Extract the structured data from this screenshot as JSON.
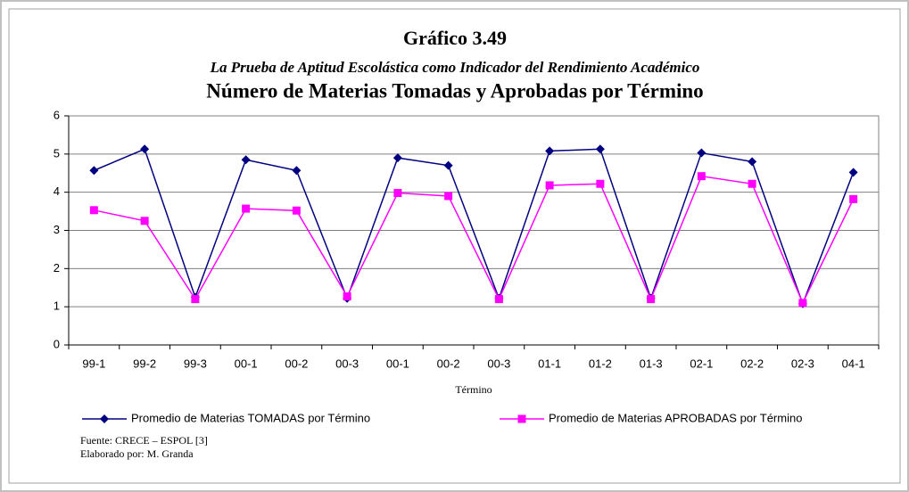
{
  "chart_data": {
    "type": "line",
    "title": "Gráfico 3.49",
    "subtitle": "La Prueba de Aptitud Escolástica como Indicador del Rendimiento Académico",
    "heading": "Número de Materias Tomadas y Aprobadas por Término",
    "x_label": "Término",
    "categories": [
      "99-1",
      "99-2",
      "99-3",
      "00-1",
      "00-2",
      "00-3",
      "00-1",
      "00-2",
      "00-3",
      "01-1",
      "01-2",
      "01-3",
      "02-1",
      "02-2",
      "02-3",
      "04-1"
    ],
    "series": [
      {
        "name": "Promedio de Materias TOMADAS por Término",
        "color": "#000080",
        "marker": "diamond",
        "values": [
          4.57,
          5.13,
          1.25,
          4.85,
          4.57,
          1.22,
          4.9,
          4.7,
          1.22,
          5.08,
          5.13,
          1.22,
          5.03,
          4.8,
          1.08,
          4.52
        ]
      },
      {
        "name": "Promedio de Materias APROBADAS por Término",
        "color": "#ff00ff",
        "marker": "square",
        "values": [
          3.53,
          3.25,
          1.2,
          3.57,
          3.52,
          1.27,
          3.98,
          3.9,
          1.2,
          4.18,
          4.22,
          1.2,
          4.42,
          4.22,
          1.1,
          3.82
        ]
      }
    ],
    "ylim": [
      0,
      6
    ],
    "yticks": [
      0,
      1,
      2,
      3,
      4,
      5,
      6
    ],
    "grid": true,
    "legend": "bottom",
    "source": "Fuente: CRECE – ESPOL [3]",
    "credit": "Elaborado por: M. Granda"
  }
}
